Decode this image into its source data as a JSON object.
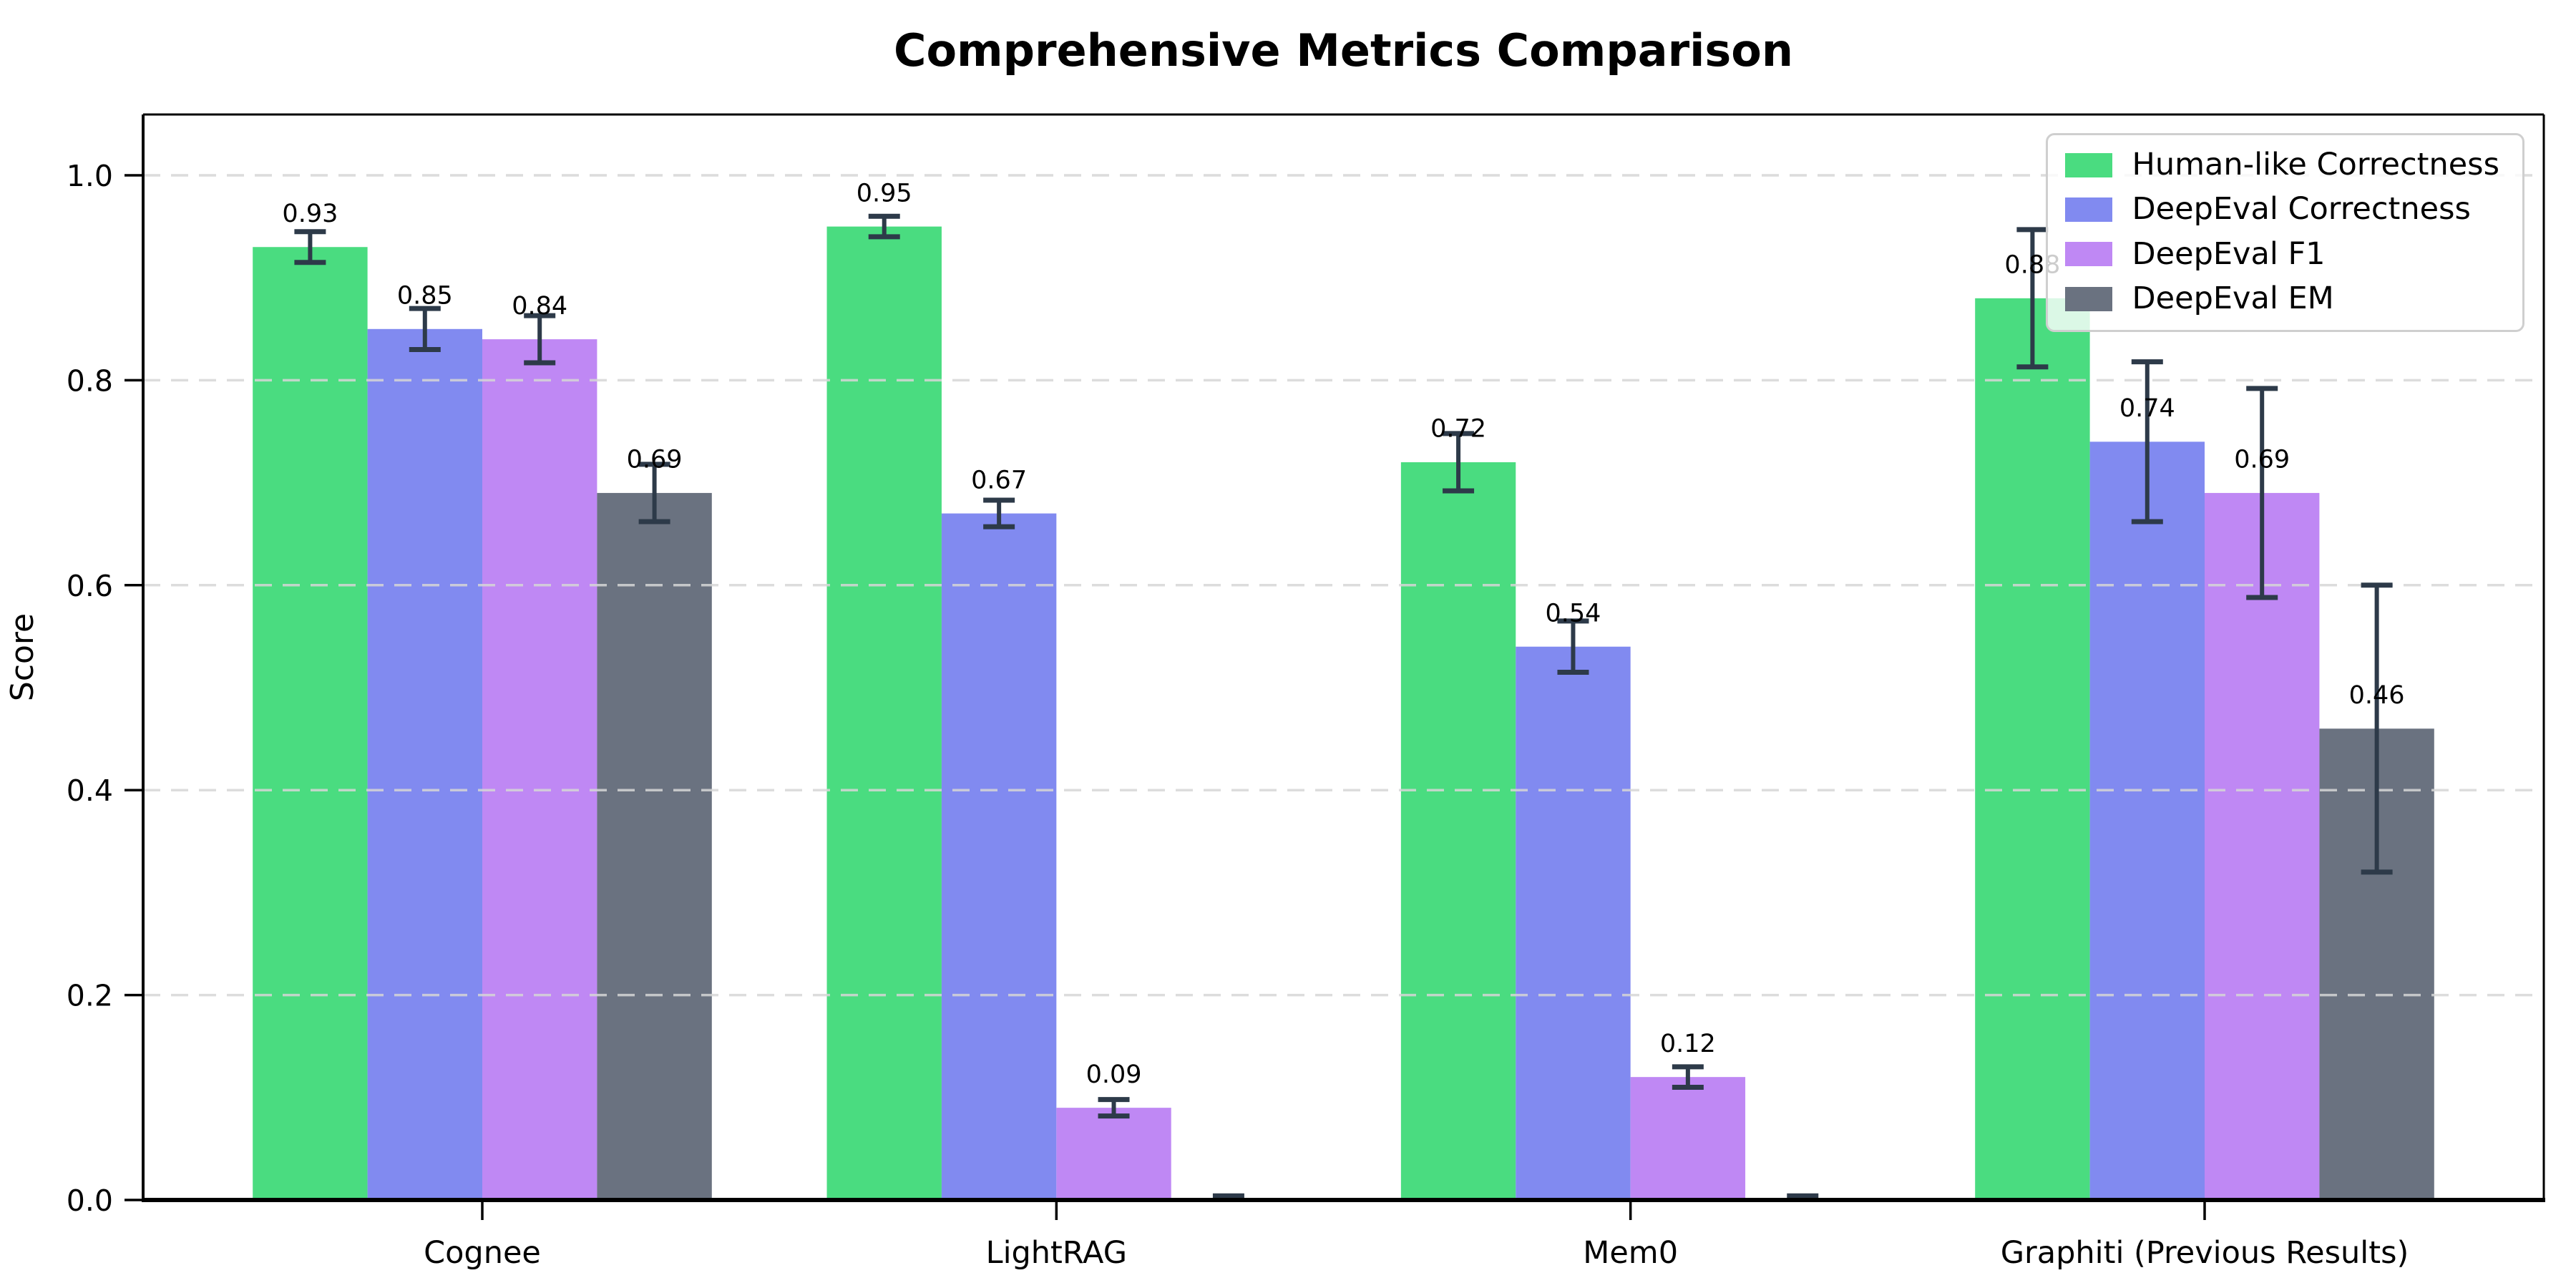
{
  "chart_data": {
    "type": "bar",
    "title": "Comprehensive Metrics Comparison",
    "xlabel": "",
    "ylabel": "Score",
    "categories": [
      "Cognee",
      "LightRAG",
      "Mem0",
      "Graphiti (Previous Results)"
    ],
    "y_ticks": [
      "0.0",
      "0.2",
      "0.4",
      "0.6",
      "0.8",
      "1.0"
    ],
    "y_tick_values": [
      0.0,
      0.2,
      0.4,
      0.6,
      0.8,
      1.0
    ],
    "ylim": [
      0,
      1.05
    ],
    "grid": "horizontal dashed",
    "legend_position": "upper right",
    "background_color": "#ffffff",
    "text_color": "#000000",
    "grid_color": "#d6d6d6",
    "error_bar_color": "#2d3a49",
    "series": [
      {
        "name": "Human-like Correctness",
        "color": "#4adc80",
        "values": [
          0.93,
          0.95,
          0.72,
          0.88
        ],
        "errors": [
          0.015,
          0.01,
          0.028,
          0.067
        ],
        "labels": [
          "0.93",
          "0.95",
          "0.72",
          "0.88"
        ]
      },
      {
        "name": "DeepEval Correctness",
        "color": "#818af0",
        "values": [
          0.85,
          0.67,
          0.54,
          0.74
        ],
        "errors": [
          0.02,
          0.013,
          0.025,
          0.078
        ],
        "labels": [
          "0.85",
          "0.67",
          "0.54",
          "0.74"
        ]
      },
      {
        "name": "DeepEval F1",
        "color": "#bf88f4",
        "values": [
          0.84,
          0.09,
          0.12,
          0.69
        ],
        "errors": [
          0.023,
          0.008,
          0.01,
          0.102
        ],
        "labels": [
          "0.84",
          "0.09",
          "0.12",
          "0.69"
        ]
      },
      {
        "name": "DeepEval EM",
        "color": "#6a7280",
        "values": [
          0.69,
          0.0,
          0.0,
          0.46
        ],
        "errors": [
          0.028,
          0.004,
          0.004,
          0.14
        ],
        "labels": [
          "0.69",
          null,
          null,
          "0.46"
        ]
      }
    ]
  }
}
